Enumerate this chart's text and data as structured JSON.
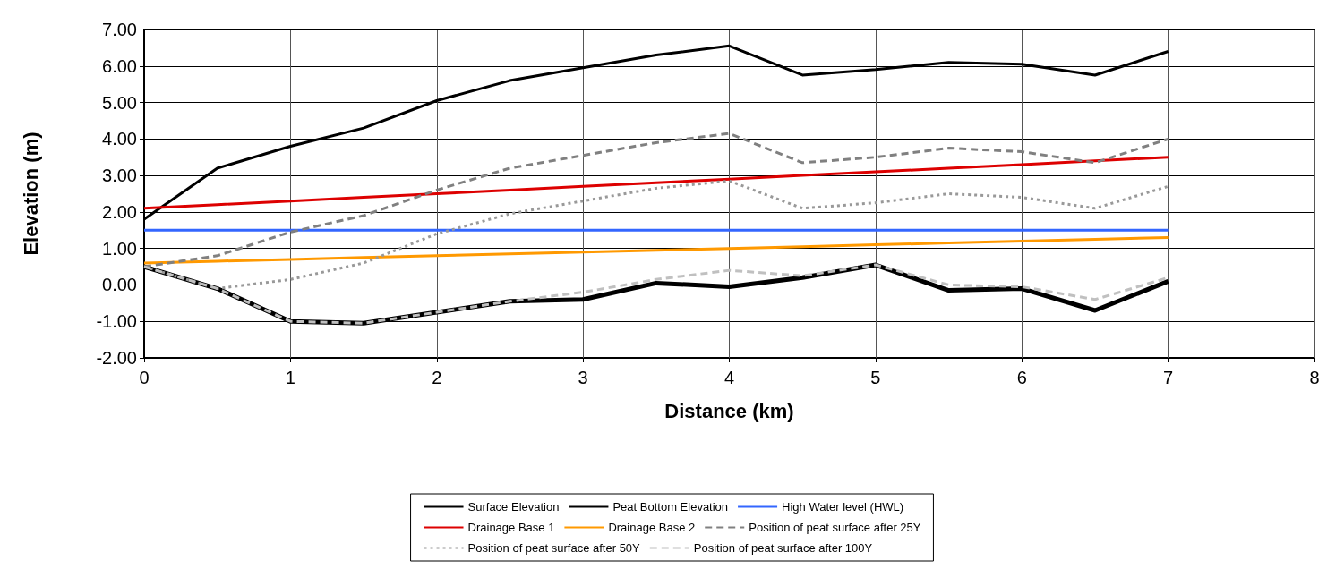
{
  "chart_data": {
    "type": "line",
    "xlabel": "Distance (km)",
    "ylabel": "Elevation (m)",
    "x": [
      0,
      0.5,
      1,
      1.5,
      2,
      2.5,
      3,
      3.5,
      4,
      4.5,
      5,
      5.5,
      6,
      6.5,
      7
    ],
    "xlim": [
      0,
      8
    ],
    "xticks": [
      0,
      1,
      2,
      3,
      4,
      5,
      6,
      7,
      8
    ],
    "ylim": [
      -2,
      7
    ],
    "yticks": [
      {
        "value": -2,
        "label": "-2.00"
      },
      {
        "value": -1,
        "label": "-1.00"
      },
      {
        "value": 0,
        "label": "0.00"
      },
      {
        "value": 1,
        "label": "1.00"
      },
      {
        "value": 2,
        "label": "2.00"
      },
      {
        "value": 3,
        "label": "3.00"
      },
      {
        "value": 4,
        "label": "4.00"
      },
      {
        "value": 5,
        "label": "5.00"
      },
      {
        "value": 6,
        "label": "6.00"
      },
      {
        "value": 7,
        "label": "7.00"
      }
    ],
    "grid": true,
    "legend": "bottom",
    "marker": "none",
    "series": [
      {
        "name": "Surface Elevation",
        "color": "#000000",
        "line_style": "solid",
        "values": [
          1.8,
          3.2,
          3.8,
          4.3,
          5.05,
          5.6,
          5.95,
          6.3,
          6.55,
          5.75,
          5.9,
          6.1,
          6.05,
          5.75,
          6.4
        ]
      },
      {
        "name": "Peat Bottom Elevation",
        "color": "#000000",
        "line_style": "solid",
        "values": [
          0.5,
          -0.1,
          -1.0,
          -1.05,
          -0.75,
          -0.45,
          -0.4,
          0.05,
          -0.05,
          0.2,
          0.55,
          -0.15,
          -0.1,
          -0.7,
          0.1
        ]
      },
      {
        "name": "High Water level (HWL)",
        "color": "#3366ff",
        "line_style": "solid",
        "values": [
          1.5,
          1.5,
          1.5,
          1.5,
          1.5,
          1.5,
          1.5,
          1.5,
          1.5,
          1.5,
          1.5,
          1.5,
          1.5,
          1.5,
          1.5
        ]
      },
      {
        "name": "Drainage Base 1",
        "color": "#dd0000",
        "line_style": "solid",
        "values": [
          2.1,
          2.2,
          2.3,
          2.4,
          2.5,
          2.6,
          2.7,
          2.8,
          2.9,
          3.0,
          3.1,
          3.2,
          3.3,
          3.4,
          3.5
        ]
      },
      {
        "name": "Drainage Base 2",
        "color": "#ff9900",
        "line_style": "solid",
        "values": [
          0.6,
          0.65,
          0.7,
          0.75,
          0.8,
          0.85,
          0.9,
          0.95,
          1.0,
          1.05,
          1.1,
          1.15,
          1.2,
          1.25,
          1.3
        ]
      },
      {
        "name": "Position of peat surface after 25Y",
        "color": "#808080",
        "line_style": "dashed",
        "values": [
          0.5,
          0.8,
          1.45,
          1.9,
          2.6,
          3.2,
          3.55,
          3.9,
          4.15,
          3.35,
          3.5,
          3.75,
          3.65,
          3.35,
          4.0
        ]
      },
      {
        "name": "Position of peat surface after 50Y",
        "color": "#999999",
        "line_style": "dotted",
        "values": [
          0.5,
          -0.1,
          0.15,
          0.6,
          1.4,
          1.95,
          2.3,
          2.65,
          2.85,
          2.1,
          2.25,
          2.5,
          2.4,
          2.1,
          2.7
        ]
      },
      {
        "name": "Position of peat surface after 100Y",
        "color": "#c0c0c0",
        "line_style": "dashed",
        "values": [
          0.5,
          -0.1,
          -1.0,
          -1.05,
          -0.75,
          -0.45,
          -0.2,
          0.15,
          0.4,
          0.25,
          0.55,
          0.0,
          -0.05,
          -0.4,
          0.2
        ]
      }
    ]
  }
}
